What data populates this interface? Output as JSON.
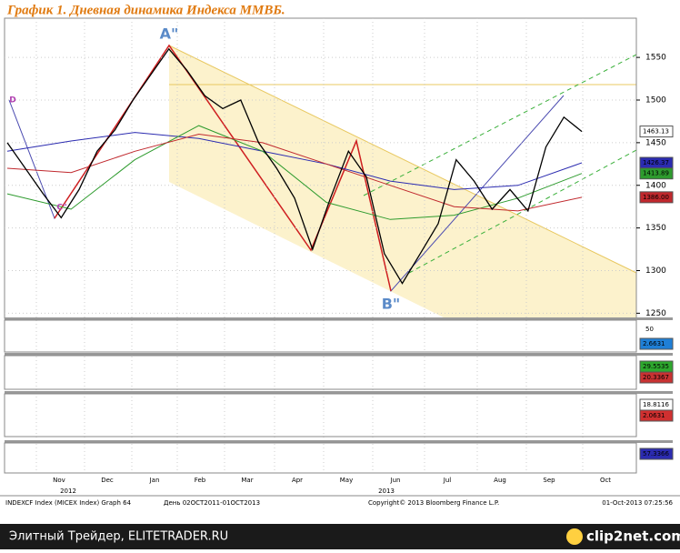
{
  "chart_data": {
    "type": "line",
    "title": "График 1.   Дневная динамика Индекса ММВБ.",
    "values": [
      1450,
      1420,
      1390,
      1362,
      1395,
      1440,
      1465,
      1500,
      1530,
      1560,
      1535,
      1505,
      1490,
      1500,
      1450,
      1420,
      1385,
      1325,
      1385,
      1440,
      1410,
      1320,
      1285,
      1320,
      1355,
      1430,
      1405,
      1372,
      1395,
      1370,
      1445,
      1480,
      1463.13
    ],
    "color": "#000000",
    "overlays": [
      {
        "color": "#2b2bb0",
        "values": [
          1440,
          1452,
          1462,
          1455,
          1440,
          1425,
          1405,
          1395,
          1400,
          1426.37
        ]
      },
      {
        "color": "#2e9b2e",
        "values": [
          1390,
          1372,
          1430,
          1470,
          1440,
          1380,
          1360,
          1365,
          1385,
          1413.89
        ]
      },
      {
        "color": "#c0282d",
        "values": [
          1420,
          1415,
          1440,
          1460,
          1450,
          1425,
          1400,
          1375,
          1370,
          1386
        ]
      }
    ],
    "ylim": [
      1244,
      1596
    ],
    "yticks": [
      1250,
      1300,
      1350,
      1400,
      1450,
      1500,
      1550
    ],
    "grid": true,
    "last_values": [
      1463.13,
      1426.37,
      1413.89,
      1386
    ],
    "last_value_labels": [
      "1463.13",
      "1426.37",
      "1413.89",
      "1386.00"
    ],
    "last_colors": [
      "#ffffff",
      "#2b2bb0",
      "#2e9b2e",
      "#c0282d"
    ],
    "x_labels": [
      "Nov",
      "Dec",
      "Jan",
      "Feb",
      "Mar",
      "Apr",
      "May",
      "Jun",
      "Jul",
      "Aug",
      "Sep",
      "Oct"
    ],
    "years": [
      "2012",
      "2013"
    ],
    "annotations": [
      "A\"",
      "B\"",
      "C\"",
      "D"
    ],
    "panels": [
      {
        "ticks": [
          50
        ],
        "last_values": [
          2.6631
        ],
        "colors": [
          "#1f7fd6"
        ]
      },
      {
        "ticks": [],
        "last_values": [
          29.5535,
          20.3367
        ],
        "colors": [
          "#2ea82e",
          "#c83232"
        ]
      },
      {
        "ticks": [],
        "last_values": [
          18.8116,
          2.0631
        ],
        "colors": [
          "#ffffff",
          "#d03030"
        ]
      },
      {
        "ticks": [],
        "last_values": [
          57.3366
        ],
        "colors": [
          "#2b2bb0"
        ]
      }
    ],
    "footer": [
      "INDEXCF Index (MICEX Index) Graph 64",
      "День 02OCT2011-01OCT2013",
      "Copyright© 2013 Bloomberg Finance L.P.",
      "01-Oct-2013 07:25:56"
    ]
  },
  "watermark": {
    "left": "Элитный Трейдер, ELITETRADER.RU",
    "right": "clip2net.com"
  }
}
